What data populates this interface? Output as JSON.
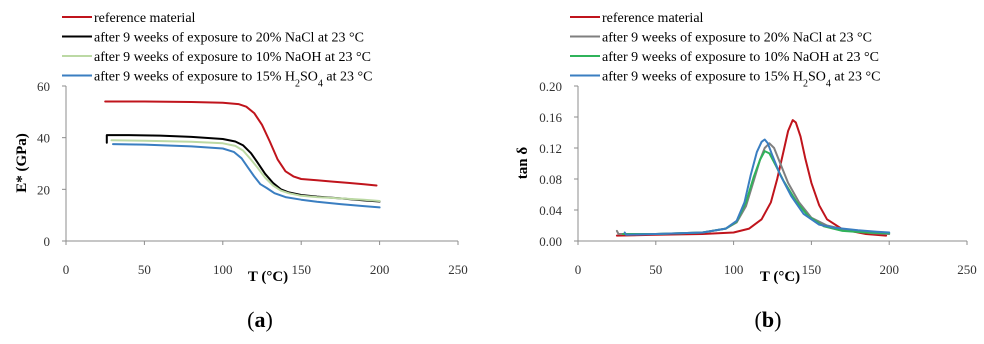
{
  "chart_data": [
    {
      "panel_label": "a",
      "type": "line",
      "xlabel": "T (°C)",
      "ylabel": "E* (GPa)",
      "xlim": [
        0,
        250
      ],
      "ylim": [
        0,
        60
      ],
      "xticks": [
        "0",
        "50",
        "100",
        "150",
        "200",
        "250"
      ],
      "yticks": [
        "0",
        "20",
        "40",
        "60"
      ],
      "grid": false,
      "legend_position": "top-left",
      "series": [
        {
          "name": "reference material",
          "color": "#c0141c",
          "points": [
            [
              25,
              54
            ],
            [
              50,
              54
            ],
            [
              80,
              53.8
            ],
            [
              100,
              53.5
            ],
            [
              110,
              53
            ],
            [
              115,
              52
            ],
            [
              120,
              49.5
            ],
            [
              125,
              45
            ],
            [
              130,
              38.5
            ],
            [
              135,
              31.5
            ],
            [
              140,
              27
            ],
            [
              145,
              25
            ],
            [
              150,
              24
            ],
            [
              160,
              23.5
            ],
            [
              170,
              23
            ],
            [
              180,
              22.5
            ],
            [
              190,
              22
            ],
            [
              198,
              21.5
            ]
          ]
        },
        {
          "name": "after 9 weeks of exposure to 20% NaCl at 23 °C",
          "color": "#000000",
          "points": [
            [
              26,
              38
            ],
            [
              26,
              41
            ],
            [
              40,
              41
            ],
            [
              60,
              40.8
            ],
            [
              80,
              40.3
            ],
            [
              100,
              39.5
            ],
            [
              108,
              38.5
            ],
            [
              113,
              37
            ],
            [
              118,
              34
            ],
            [
              122,
              30.5
            ],
            [
              127,
              26
            ],
            [
              132,
              22.5
            ],
            [
              137,
              20
            ],
            [
              142,
              18.8
            ],
            [
              150,
              17.8
            ],
            [
              160,
              17.2
            ],
            [
              175,
              16.5
            ],
            [
              190,
              15.7
            ],
            [
              200,
              15.3
            ]
          ]
        },
        {
          "name": "after 9 weeks of exposure to 10% NaOH at 23 °C",
          "color": "#bcd9a4",
          "points": [
            [
              29,
              39
            ],
            [
              50,
              38.8
            ],
            [
              80,
              38.4
            ],
            [
              100,
              37.8
            ],
            [
              108,
              36.8
            ],
            [
              113,
              35
            ],
            [
              118,
              31.5
            ],
            [
              122,
              28.5
            ],
            [
              127,
              24.5
            ],
            [
              132,
              21.5
            ],
            [
              137,
              19.5
            ],
            [
              142,
              18.5
            ],
            [
              150,
              17.5
            ],
            [
              160,
              17
            ],
            [
              175,
              16.5
            ],
            [
              190,
              16
            ],
            [
              200,
              15.5
            ]
          ]
        },
        {
          "name": "after 9 weeks of exposure to 15% H2SO4 at 23 °C",
          "color": "#3a7ec1",
          "points": [
            [
              30,
              37.5
            ],
            [
              50,
              37.3
            ],
            [
              80,
              36.6
            ],
            [
              100,
              35.8
            ],
            [
              107,
              34.5
            ],
            [
              112,
              32
            ],
            [
              116,
              28.5
            ],
            [
              120,
              25
            ],
            [
              124,
              22
            ],
            [
              128,
              20.5
            ],
            [
              133,
              18.5
            ],
            [
              140,
              17
            ],
            [
              150,
              16
            ],
            [
              160,
              15.2
            ],
            [
              175,
              14.3
            ],
            [
              190,
              13.5
            ],
            [
              200,
              13
            ]
          ]
        }
      ]
    },
    {
      "panel_label": "b",
      "type": "line",
      "xlabel": "T (°C)",
      "ylabel": "tan δ",
      "xlim": [
        0,
        250
      ],
      "ylim": [
        0,
        0.2
      ],
      "xticks": [
        "0",
        "50",
        "100",
        "150",
        "200",
        "250"
      ],
      "yticks": [
        "0.00",
        "0.04",
        "0.08",
        "0.12",
        "0.16",
        "0.20"
      ],
      "grid": false,
      "legend_position": "top-left",
      "series": [
        {
          "name": "reference material",
          "color": "#c0141c",
          "points": [
            [
              25,
              0.007
            ],
            [
              50,
              0.008
            ],
            [
              80,
              0.009
            ],
            [
              100,
              0.011
            ],
            [
              110,
              0.016
            ],
            [
              118,
              0.028
            ],
            [
              124,
              0.05
            ],
            [
              128,
              0.08
            ],
            [
              132,
              0.115
            ],
            [
              135,
              0.142
            ],
            [
              138,
              0.156
            ],
            [
              140,
              0.153
            ],
            [
              143,
              0.135
            ],
            [
              146,
              0.107
            ],
            [
              150,
              0.075
            ],
            [
              155,
              0.046
            ],
            [
              160,
              0.028
            ],
            [
              170,
              0.015
            ],
            [
              185,
              0.009
            ],
            [
              198,
              0.007
            ]
          ]
        },
        {
          "name": "after 9 weeks of exposure to 20% NaCl at 23 °C",
          "color": "#7f7f7f",
          "points": [
            [
              25,
              0.013
            ],
            [
              26,
              0.009
            ],
            [
              50,
              0.009
            ],
            [
              80,
              0.011
            ],
            [
              95,
              0.016
            ],
            [
              102,
              0.024
            ],
            [
              108,
              0.045
            ],
            [
              113,
              0.078
            ],
            [
              117,
              0.105
            ],
            [
              120,
              0.12
            ],
            [
              123,
              0.126
            ],
            [
              126,
              0.12
            ],
            [
              130,
              0.1
            ],
            [
              135,
              0.075
            ],
            [
              142,
              0.05
            ],
            [
              150,
              0.03
            ],
            [
              160,
              0.02
            ],
            [
              175,
              0.013
            ],
            [
              190,
              0.01
            ],
            [
              200,
              0.009
            ]
          ]
        },
        {
          "name": "after 9 weeks of exposure to 10% NaOH at 23 °C",
          "color": "#2fb35a",
          "points": [
            [
              29,
              0.009
            ],
            [
              50,
              0.009
            ],
            [
              80,
              0.011
            ],
            [
              95,
              0.016
            ],
            [
              102,
              0.025
            ],
            [
              108,
              0.05
            ],
            [
              113,
              0.083
            ],
            [
              117,
              0.105
            ],
            [
              120,
              0.116
            ],
            [
              123,
              0.113
            ],
            [
              127,
              0.098
            ],
            [
              132,
              0.078
            ],
            [
              140,
              0.052
            ],
            [
              148,
              0.032
            ],
            [
              158,
              0.019
            ],
            [
              170,
              0.013
            ],
            [
              185,
              0.011
            ],
            [
              200,
              0.01
            ]
          ]
        },
        {
          "name": "after 9 weeks of exposure to 15% H2SO4 at 23 °C",
          "color": "#3a7ec1",
          "points": [
            [
              30,
              0.011
            ],
            [
              31,
              0.008
            ],
            [
              50,
              0.009
            ],
            [
              80,
              0.011
            ],
            [
              95,
              0.016
            ],
            [
              102,
              0.026
            ],
            [
              107,
              0.05
            ],
            [
              111,
              0.085
            ],
            [
              115,
              0.115
            ],
            [
              118,
              0.128
            ],
            [
              120,
              0.131
            ],
            [
              122,
              0.126
            ],
            [
              125,
              0.11
            ],
            [
              130,
              0.085
            ],
            [
              137,
              0.058
            ],
            [
              145,
              0.035
            ],
            [
              155,
              0.021
            ],
            [
              165,
              0.017
            ],
            [
              180,
              0.014
            ],
            [
              192,
              0.012
            ],
            [
              200,
              0.011
            ]
          ]
        }
      ]
    }
  ]
}
